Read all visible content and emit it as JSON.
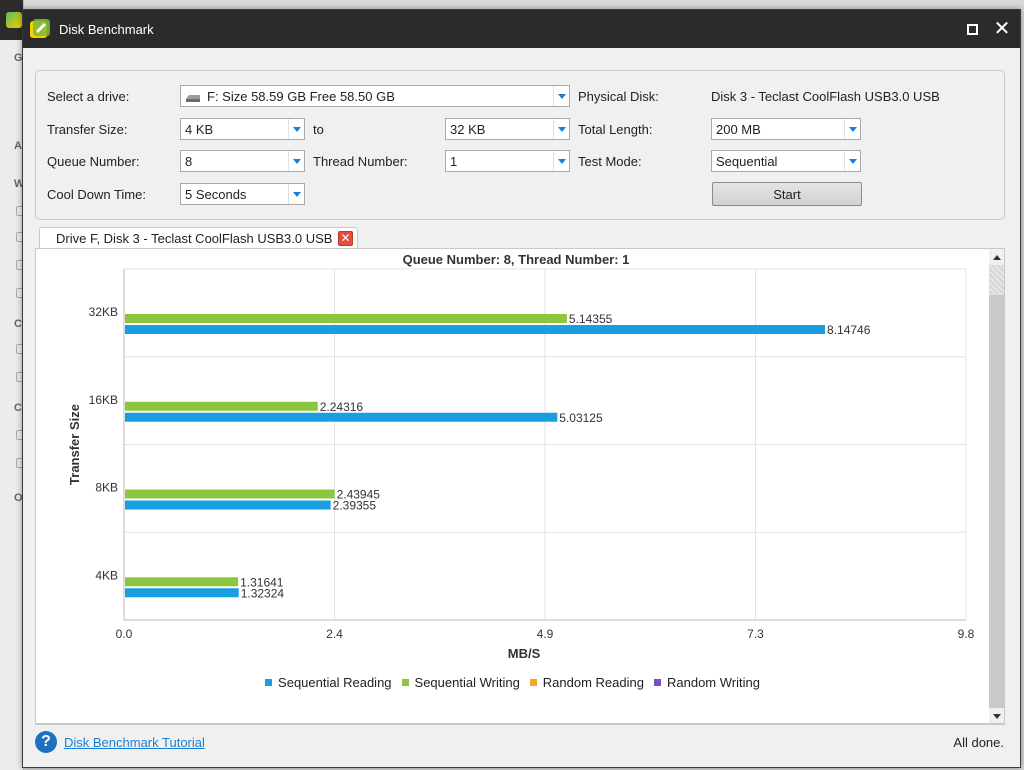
{
  "background_app": {
    "letters": [
      "G",
      "A",
      "W",
      "C",
      "C",
      "O"
    ]
  },
  "window": {
    "title": "Disk Benchmark",
    "maximize_label": "",
    "close_label": "✕"
  },
  "settings": {
    "drive_label": "Select a drive:",
    "drive_value": "F:  Size 58.59 GB  Free 58.50 GB",
    "physical_disk_label": "Physical Disk:",
    "physical_disk_value": "Disk 3 - Teclast CoolFlash USB3.0 USB",
    "transfer_size_label": "Transfer Size:",
    "transfer_size_from": "4 KB",
    "to_label": "to",
    "transfer_size_to": "32 KB",
    "total_length_label": "Total Length:",
    "total_length_value": "200 MB",
    "queue_number_label": "Queue Number:",
    "queue_number_value": "8",
    "thread_number_label": "Thread Number:",
    "thread_number_value": "1",
    "test_mode_label": "Test Mode:",
    "test_mode_value": "Sequential",
    "cool_down_label": "Cool Down Time:",
    "cool_down_value": "5 Seconds",
    "start_label": "Start"
  },
  "tab": {
    "label": "Drive F, Disk 3 - Teclast CoolFlash USB3.0 USB",
    "close_label": "✕"
  },
  "colors": {
    "reading": "#1a9ee2",
    "writing": "#8cc63f",
    "random_reading": "#f5a623",
    "random_writing": "#7b4fc9",
    "grid": "#e3e3e3",
    "link": "#1a7fd4"
  },
  "chart_data": {
    "type": "bar",
    "orientation": "horizontal",
    "title": "Queue Number: 8, Thread Number: 1",
    "xlabel": "MB/S",
    "ylabel": "Transfer Size",
    "categories": [
      "32KB",
      "16KB",
      "8KB",
      "4KB"
    ],
    "xlim": [
      0,
      9.8
    ],
    "xticks": [
      "0.0",
      "2.4",
      "4.9",
      "7.3",
      "9.8"
    ],
    "series": [
      {
        "name": "Sequential Writing",
        "values": [
          5.14355,
          2.24316,
          2.43945,
          1.31641
        ],
        "labels": [
          "5.14355",
          "2.24316",
          "2.43945",
          "1.31641"
        ]
      },
      {
        "name": "Sequential Reading",
        "values": [
          8.14746,
          5.03125,
          2.39355,
          1.32324
        ],
        "labels": [
          "8.14746",
          "5.03125",
          "2.39355",
          "1.32324"
        ]
      }
    ],
    "legend": [
      "Sequential Reading",
      "Sequential Writing",
      "Random Reading",
      "Random Writing"
    ],
    "legend_position": "bottom",
    "grid": true
  },
  "footer": {
    "help_icon": "?",
    "tutorial_link": "Disk Benchmark Tutorial",
    "status": "All done."
  }
}
